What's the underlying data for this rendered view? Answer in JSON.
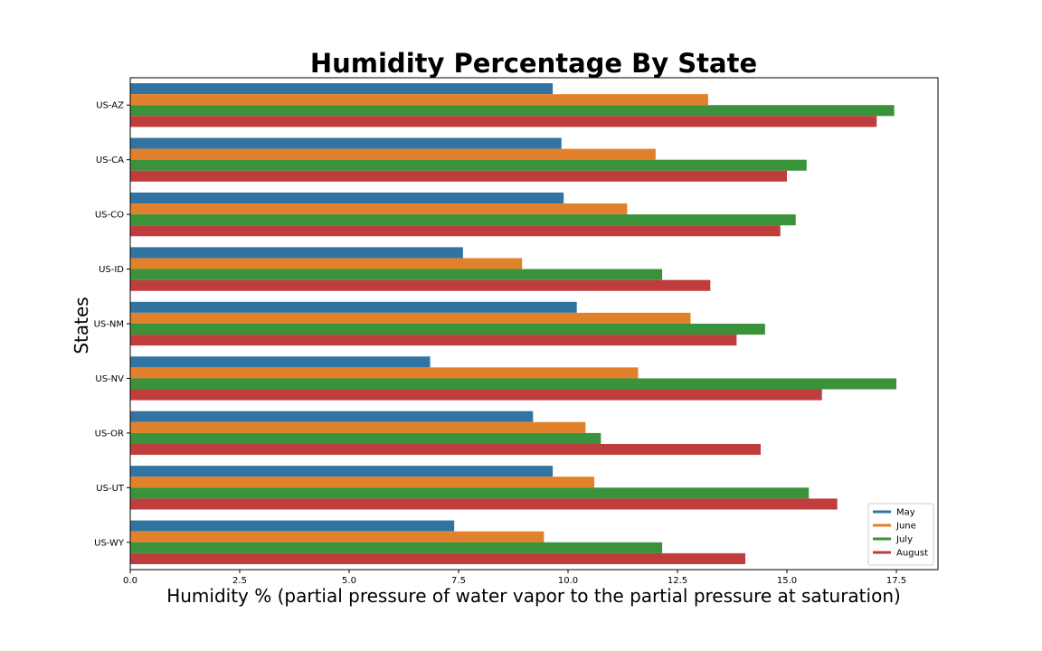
{
  "chart_data": {
    "type": "bar",
    "orientation": "horizontal",
    "title": "Humidity Percentage By State",
    "xlabel": "Humidity % (partial pressure of water vapor to the partial pressure at saturation)",
    "ylabel": "States",
    "xlim": [
      0,
      18.45
    ],
    "xticks": [
      "0.0",
      "2.5",
      "5.0",
      "7.5",
      "10.0",
      "12.5",
      "15.0",
      "17.5"
    ],
    "categories": [
      "US-AZ",
      "US-CA",
      "US-CO",
      "US-ID",
      "US-NM",
      "US-NV",
      "US-OR",
      "US-UT",
      "US-WY"
    ],
    "series": [
      {
        "name": "May",
        "color": "#3274a1",
        "values": [
          9.65,
          9.85,
          9.9,
          7.6,
          10.2,
          6.85,
          9.2,
          9.65,
          7.4
        ]
      },
      {
        "name": "June",
        "color": "#e1812c",
        "values": [
          13.2,
          12.0,
          11.35,
          8.95,
          12.8,
          11.6,
          10.4,
          10.6,
          9.45
        ]
      },
      {
        "name": "July",
        "color": "#3a923a",
        "values": [
          17.45,
          15.45,
          15.2,
          12.15,
          14.5,
          17.5,
          10.75,
          15.5,
          12.15
        ]
      },
      {
        "name": "August",
        "color": "#c03d3e",
        "values": [
          17.05,
          15.0,
          14.85,
          13.25,
          13.85,
          15.8,
          14.4,
          16.15,
          14.05
        ]
      }
    ],
    "legend_position": "lower-right",
    "grid": false
  }
}
